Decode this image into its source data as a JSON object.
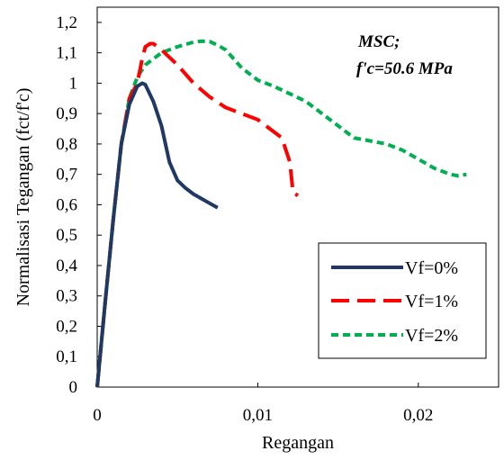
{
  "chart_data": {
    "type": "line",
    "xlabel": "Regangan",
    "ylabel": "Normalisasi Tegangan (fct/f'c)",
    "xlim": [
      0,
      0.025
    ],
    "ylim": [
      0,
      1.25
    ],
    "x_ticks": [
      {
        "value": 0,
        "label": "0"
      },
      {
        "value": 0.01,
        "label": "0,01"
      },
      {
        "value": 0.02,
        "label": "0,02"
      }
    ],
    "y_ticks": [
      {
        "value": 0,
        "label": "0"
      },
      {
        "value": 0.1,
        "label": "0,1"
      },
      {
        "value": 0.2,
        "label": "0,2"
      },
      {
        "value": 0.3,
        "label": "0,3"
      },
      {
        "value": 0.4,
        "label": "0,4"
      },
      {
        "value": 0.5,
        "label": "0,5"
      },
      {
        "value": 0.6,
        "label": "0,6"
      },
      {
        "value": 0.7,
        "label": "0,7"
      },
      {
        "value": 0.8,
        "label": "0,8"
      },
      {
        "value": 0.9,
        "label": "0,9"
      },
      {
        "value": 1.0,
        "label": "1"
      },
      {
        "value": 1.1,
        "label": "1,1"
      },
      {
        "value": 1.2,
        "label": "1,2"
      }
    ],
    "annotation": [
      "MSC;",
      "f'c=50.6 MPa"
    ],
    "grid": false,
    "legend_position": "bottom-right",
    "series": [
      {
        "name": "Vf=0%",
        "color": "#1f3864",
        "style": "solid",
        "x": [
          0,
          0.0005,
          0.001,
          0.0015,
          0.002,
          0.0025,
          0.0028,
          0.003,
          0.0035,
          0.004,
          0.0045,
          0.005,
          0.0055,
          0.006,
          0.0065,
          0.007,
          0.0075
        ],
        "y": [
          0,
          0.28,
          0.55,
          0.8,
          0.93,
          0.99,
          1.0,
          0.995,
          0.94,
          0.86,
          0.74,
          0.68,
          0.655,
          0.635,
          0.62,
          0.605,
          0.59
        ]
      },
      {
        "name": "Vf=1%",
        "color": "#ff0000",
        "style": "dashed",
        "x": [
          0,
          0.0005,
          0.001,
          0.0015,
          0.002,
          0.0025,
          0.0028,
          0.003,
          0.0033,
          0.0035,
          0.004,
          0.005,
          0.006,
          0.007,
          0.008,
          0.009,
          0.01,
          0.011,
          0.0115,
          0.012,
          0.0122,
          0.0125
        ],
        "y": [
          0,
          0.28,
          0.55,
          0.8,
          0.95,
          1.0,
          1.08,
          1.12,
          1.13,
          1.13,
          1.11,
          1.06,
          1.0,
          0.955,
          0.92,
          0.9,
          0.88,
          0.84,
          0.82,
          0.74,
          0.64,
          0.63
        ]
      },
      {
        "name": "Vf=2%",
        "color": "#00b050",
        "style": "dotted",
        "x": [
          0,
          0.0005,
          0.001,
          0.0015,
          0.002,
          0.0025,
          0.003,
          0.004,
          0.005,
          0.006,
          0.0065,
          0.007,
          0.0075,
          0.008,
          0.009,
          0.01,
          0.011,
          0.012,
          0.013,
          0.014,
          0.015,
          0.016,
          0.017,
          0.018,
          0.019,
          0.02,
          0.021,
          0.022,
          0.0225,
          0.023
        ],
        "y": [
          0,
          0.28,
          0.55,
          0.8,
          0.95,
          1.02,
          1.06,
          1.1,
          1.12,
          1.135,
          1.138,
          1.137,
          1.125,
          1.11,
          1.05,
          1.01,
          0.99,
          0.965,
          0.94,
          0.9,
          0.86,
          0.82,
          0.81,
          0.8,
          0.78,
          0.75,
          0.72,
          0.7,
          0.695,
          0.7
        ]
      }
    ]
  }
}
